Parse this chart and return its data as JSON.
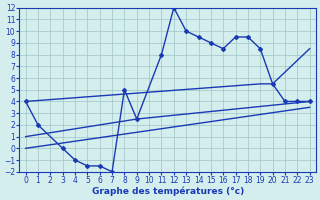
{
  "line1_x": [
    0,
    1,
    3,
    4,
    5,
    6,
    7,
    8,
    9,
    11,
    12,
    13,
    14,
    15,
    16,
    17,
    18,
    19,
    20,
    21,
    22,
    23
  ],
  "line1_y": [
    4,
    2,
    0,
    -1,
    -1.5,
    -1.5,
    -2,
    5,
    2.5,
    8,
    12,
    10,
    9.5,
    9,
    8.5,
    9.5,
    9.5,
    8.5,
    5.5,
    4,
    4,
    4
  ],
  "line2_x": [
    0,
    19,
    20,
    23
  ],
  "line2_y": [
    4,
    5.5,
    5.5,
    8.5
  ],
  "line3_x": [
    0,
    9,
    23
  ],
  "line3_y": [
    1,
    2.5,
    4
  ],
  "line4_x": [
    0,
    23
  ],
  "line4_y": [
    0,
    3.5
  ],
  "line_color": "#1a3ab5",
  "bg_color": "#d4eeed",
  "grid_color": "#a0c4c4",
  "xlabel": "Graphe des températures (°c)",
  "xlim": [
    -0.5,
    23.5
  ],
  "ylim": [
    -2,
    12
  ],
  "xticks": [
    0,
    1,
    2,
    3,
    4,
    5,
    6,
    7,
    8,
    9,
    10,
    11,
    12,
    13,
    14,
    15,
    16,
    17,
    18,
    19,
    20,
    21,
    22,
    23
  ],
  "yticks": [
    -2,
    -1,
    0,
    1,
    2,
    3,
    4,
    5,
    6,
    7,
    8,
    9,
    10,
    11,
    12
  ],
  "marker": "D",
  "markersize": 2.0,
  "linewidth": 1.0,
  "tick_fontsize": 5.5,
  "xlabel_fontsize": 6.5
}
